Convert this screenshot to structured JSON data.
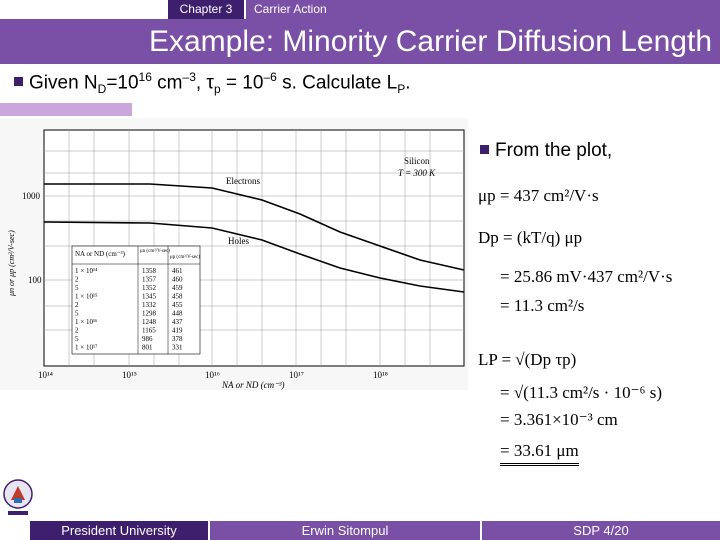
{
  "header": {
    "chapter": "Chapter 3",
    "chapter_title": "Carrier Action"
  },
  "slide_title": "Example: Minority Carrier Diffusion Length",
  "given": {
    "text_pre": "Given N",
    "nd_sub": "D",
    "text_eq": "=10",
    "exp1": "16",
    "unit1": " cm",
    "exp2": "–3",
    "tau_pre": ", τ",
    "tau_sub": "p",
    "tau_eq": " = 10",
    "exp3": "–6",
    "tail": " s. Calculate L",
    "lp_sub": "P",
    "end": "."
  },
  "from_plot": "From the plot,",
  "equations": {
    "mu": "μp = 437  cm²/V·s",
    "dp1": "Dp = (kT/q) μp",
    "dp2": "= 25.86 mV·437 cm²/V·s",
    "dp3": "= 11.3 cm²/s",
    "lp1": "LP = √(Dp τp)",
    "lp2": "= √(11.3 cm²/s · 10⁻⁶ s)",
    "lp3": "= 3.361×10⁻³  cm",
    "lp4": "= 33.61 μm"
  },
  "plot": {
    "legend": [
      "Silicon",
      "T = 300 K"
    ],
    "labels": {
      "electrons": "Electrons",
      "holes": "Holes"
    },
    "ylabel": "μn or μp (cm²/V-sec)",
    "xlabel": "NA or ND (cm⁻³)",
    "yticks": [
      "1000",
      "100"
    ],
    "xticks": [
      "10¹⁴",
      "10¹⁵",
      "10¹⁶",
      "10¹⁷",
      "10¹⁸"
    ],
    "table_head": [
      "NA or ND (cm⁻³)",
      "μn (cm²/V-sec)",
      "μp (cm²/V-sec)"
    ],
    "table_rows": [
      [
        "1 × 10¹⁴",
        "1358",
        "461"
      ],
      [
        "2",
        "1357",
        "460"
      ],
      [
        "5",
        "1352",
        "459"
      ],
      [
        "1 × 10¹⁵",
        "1345",
        "458"
      ],
      [
        "2",
        "1332",
        "455"
      ],
      [
        "5",
        "1298",
        "448"
      ],
      [
        "1 × 10¹⁶",
        "1248",
        "437"
      ],
      [
        "2",
        "1165",
        "419"
      ],
      [
        "5",
        "986",
        "378"
      ],
      [
        "1 × 10¹⁷",
        "801",
        "331"
      ]
    ]
  },
  "footer": {
    "university": "President University",
    "author": "Erwin Sitompul",
    "page": "SDP 4/20"
  }
}
